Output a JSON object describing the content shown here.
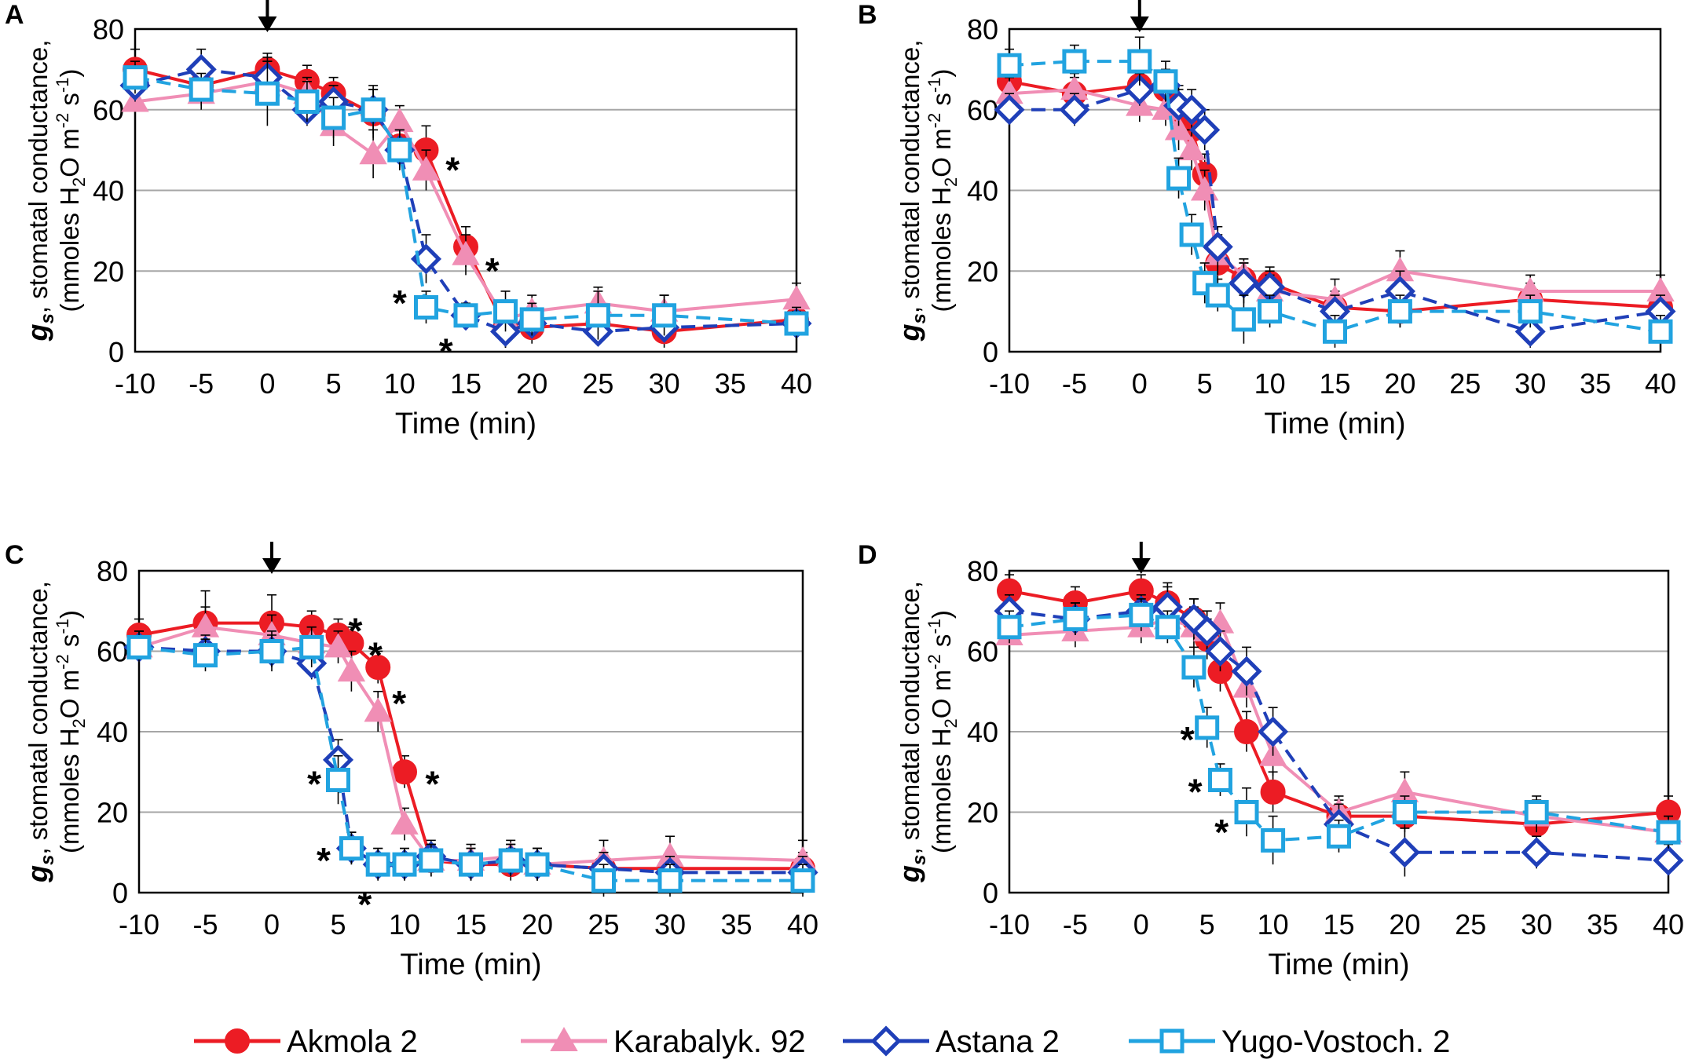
{
  "y_axis_label": {
    "symbol": "g",
    "subscript": "s",
    "line1": ", stomatal conductance,",
    "line2_prefix": "(mmoles H",
    "line2_sub": "2",
    "line2_mid": "O m",
    "line2_sup1": "-2",
    "line2_mid2": " s",
    "line2_sup2": "-1",
    "line2_suffix": ")"
  },
  "arrow_glyph": "↓",
  "star_glyph": "*",
  "legend": [
    {
      "name": "Akmola 2",
      "color": "#ec1c24",
      "marker": "circle",
      "dash": "solid"
    },
    {
      "name": "Karabalyk. 92",
      "color": "#f08eb5",
      "marker": "triangle",
      "dash": "solid"
    },
    {
      "name": "Astana 2",
      "color": "#1f3fb8",
      "marker": "diamond",
      "dash": "dashed"
    },
    {
      "name": "Yugo-Vostoch. 2",
      "color": "#21a3e0",
      "marker": "square",
      "dash": "dashed"
    }
  ],
  "chart_data": [
    {
      "type": "line",
      "panel": "A",
      "xlabel": "Time (min)",
      "xlim": [
        -10,
        40
      ],
      "xticks": [
        -10,
        -5,
        0,
        5,
        10,
        15,
        20,
        25,
        30,
        35,
        40
      ],
      "ylim": [
        0,
        80
      ],
      "yticks": [
        0,
        20,
        40,
        60,
        80
      ],
      "arrow_x": 0,
      "series": [
        {
          "name": "Akmola 2",
          "x": [
            -10,
            -5,
            0,
            3,
            5,
            8,
            10,
            12,
            15,
            18,
            20,
            25,
            30,
            40
          ],
          "y": [
            70,
            66,
            70,
            67,
            64,
            59,
            51,
            50,
            26,
            6,
            6,
            7,
            5,
            8
          ],
          "err": [
            5,
            4,
            4,
            4,
            4,
            6,
            4,
            6,
            5,
            5,
            4,
            4,
            4,
            4
          ]
        },
        {
          "name": "Karabalyk. 92",
          "x": [
            -10,
            -5,
            0,
            3,
            5,
            8,
            10,
            12,
            15,
            18,
            20,
            25,
            30,
            40
          ],
          "y": [
            62,
            64,
            67,
            64,
            56,
            49,
            57,
            45,
            24,
            8,
            10,
            12,
            10,
            13
          ],
          "err": [
            5,
            4,
            5,
            4,
            5,
            6,
            4,
            5,
            5,
            4,
            4,
            4,
            4,
            4
          ]
        },
        {
          "name": "Astana 2",
          "x": [
            -10,
            -5,
            0,
            3,
            5,
            8,
            10,
            12,
            15,
            18,
            20,
            25,
            30,
            40
          ],
          "y": [
            66,
            70,
            68,
            60,
            62,
            60,
            50,
            23,
            9,
            5,
            7,
            5,
            6,
            7
          ],
          "err": [
            4,
            5,
            5,
            4,
            4,
            5,
            5,
            6,
            3,
            4,
            3,
            3,
            3,
            3
          ]
        },
        {
          "name": "Yugo-Vostoch. 2",
          "x": [
            -10,
            -5,
            0,
            3,
            5,
            8,
            10,
            12,
            15,
            18,
            20,
            25,
            30,
            40
          ],
          "y": [
            68,
            65,
            64,
            62,
            58,
            60,
            50,
            11,
            9,
            10,
            8,
            9,
            9,
            7
          ],
          "err": [
            4,
            4,
            8,
            5,
            5,
            6,
            5,
            4,
            3,
            5,
            4,
            6,
            5,
            4
          ]
        }
      ],
      "annotations": [
        {
          "text": "*",
          "x": 14,
          "y": 47
        },
        {
          "text": "*",
          "x": 17,
          "y": 22
        },
        {
          "text": "*",
          "x": 10,
          "y": 14
        },
        {
          "text": "*",
          "x": 13.5,
          "y": 2
        }
      ]
    },
    {
      "type": "line",
      "panel": "B",
      "xlabel": "Time (min)",
      "xlim": [
        -10,
        40
      ],
      "xticks": [
        -10,
        -5,
        0,
        5,
        10,
        15,
        20,
        25,
        30,
        35,
        40
      ],
      "ylim": [
        0,
        80
      ],
      "yticks": [
        0,
        20,
        40,
        60,
        80
      ],
      "arrow_x": 0,
      "series": [
        {
          "name": "Akmola 2",
          "x": [
            -10,
            -5,
            0,
            2,
            3,
            4,
            5,
            6,
            8,
            10,
            15,
            20,
            30,
            40
          ],
          "y": [
            67,
            64,
            66,
            65,
            60,
            55,
            44,
            22,
            18,
            17,
            11,
            10,
            13,
            11
          ],
          "err": [
            4,
            4,
            4,
            4,
            5,
            5,
            5,
            5,
            4,
            4,
            4,
            4,
            4,
            4
          ]
        },
        {
          "name": "Karabalyk. 92",
          "x": [
            -10,
            -5,
            0,
            2,
            3,
            4,
            5,
            6,
            8,
            10,
            15,
            20,
            30,
            40
          ],
          "y": [
            64,
            65,
            61,
            60,
            55,
            50,
            40,
            24,
            19,
            15,
            13,
            20,
            15,
            15
          ],
          "err": [
            4,
            4,
            4,
            4,
            5,
            5,
            5,
            5,
            4,
            4,
            5,
            5,
            4,
            4
          ]
        },
        {
          "name": "Astana 2",
          "x": [
            -10,
            -5,
            0,
            2,
            3,
            4,
            5,
            6,
            8,
            10,
            15,
            20,
            30,
            40
          ],
          "y": [
            60,
            60,
            65,
            66,
            61,
            60,
            55,
            26,
            17,
            16,
            10,
            15,
            5,
            10
          ],
          "err": [
            4,
            4,
            4,
            4,
            5,
            5,
            5,
            5,
            5,
            4,
            4,
            5,
            4,
            4
          ]
        },
        {
          "name": "Yugo-Vostoch. 2",
          "x": [
            -10,
            -5,
            0,
            2,
            3,
            4,
            5,
            6,
            8,
            10,
            15,
            20,
            30,
            40
          ],
          "y": [
            71,
            72,
            72,
            67,
            43,
            29,
            17,
            14,
            8,
            10,
            5,
            10,
            10,
            5
          ],
          "err": [
            4,
            4,
            6,
            5,
            5,
            5,
            5,
            4,
            6,
            4,
            4,
            4,
            4,
            4
          ]
        }
      ],
      "annotations": []
    },
    {
      "type": "line",
      "panel": "C",
      "xlabel": "Time (min)",
      "xlim": [
        -10,
        40
      ],
      "xticks": [
        -10,
        -5,
        0,
        5,
        10,
        15,
        20,
        25,
        30,
        35,
        40
      ],
      "ylim": [
        0,
        80
      ],
      "yticks": [
        0,
        20,
        40,
        60,
        80
      ],
      "arrow_x": 0,
      "series": [
        {
          "name": "Akmola 2",
          "x": [
            -10,
            -5,
            0,
            3,
            5,
            6,
            8,
            10,
            12,
            15,
            18,
            20,
            25,
            30,
            40
          ],
          "y": [
            64,
            67,
            67,
            66,
            64,
            62,
            56,
            30,
            8,
            7,
            7,
            7,
            6,
            6,
            6
          ],
          "err": [
            4,
            8,
            7,
            4,
            4,
            4,
            4,
            4,
            4,
            4,
            4,
            4,
            4,
            4,
            4
          ]
        },
        {
          "name": "Karabalyk. 92",
          "x": [
            -10,
            -5,
            0,
            3,
            5,
            6,
            8,
            10,
            12,
            15,
            18,
            20,
            25,
            30,
            40
          ],
          "y": [
            61,
            66,
            64,
            62,
            61,
            55,
            45,
            17,
            8,
            8,
            9,
            7,
            8,
            9,
            8
          ],
          "err": [
            4,
            5,
            5,
            4,
            4,
            5,
            5,
            4,
            4,
            4,
            4,
            4,
            5,
            5,
            5
          ]
        },
        {
          "name": "Astana 2",
          "x": [
            -10,
            -5,
            0,
            3,
            5,
            6,
            8,
            10,
            12,
            15,
            18,
            20,
            25,
            30,
            40
          ],
          "y": [
            61,
            60,
            60,
            57,
            33,
            11,
            7,
            7,
            9,
            7,
            8,
            7,
            6,
            5,
            5
          ],
          "err": [
            4,
            4,
            5,
            4,
            5,
            4,
            4,
            4,
            4,
            4,
            4,
            4,
            4,
            4,
            4
          ]
        },
        {
          "name": "Yugo-Vostoch. 2",
          "x": [
            -10,
            -5,
            0,
            3,
            5,
            6,
            8,
            10,
            12,
            15,
            18,
            20,
            25,
            30,
            40
          ],
          "y": [
            61,
            59,
            60,
            61,
            28,
            11,
            7,
            7,
            8,
            7,
            8,
            7,
            3,
            3,
            3
          ],
          "err": [
            4,
            4,
            4,
            5,
            6,
            4,
            4,
            4,
            4,
            4,
            4,
            4,
            4,
            4,
            4
          ]
        }
      ],
      "annotations": [
        {
          "text": "*",
          "x": 6.3,
          "y": 67
        },
        {
          "text": "*",
          "x": 7.8,
          "y": 61
        },
        {
          "text": "*",
          "x": 9.6,
          "y": 49
        },
        {
          "text": "*",
          "x": 12.1,
          "y": 29
        },
        {
          "text": "*",
          "x": 3.2,
          "y": 29
        },
        {
          "text": "*",
          "x": 3.9,
          "y": 10
        },
        {
          "text": "*",
          "x": 7.0,
          "y": -1
        }
      ]
    },
    {
      "type": "line",
      "panel": "D",
      "xlabel": "Time (min)",
      "xlim": [
        -10,
        40
      ],
      "xticks": [
        -10,
        -5,
        0,
        5,
        10,
        15,
        20,
        25,
        30,
        35,
        40
      ],
      "ylim": [
        0,
        80
      ],
      "yticks": [
        0,
        20,
        40,
        60,
        80
      ],
      "arrow_x": 0,
      "series": [
        {
          "name": "Akmola 2",
          "x": [
            -10,
            -5,
            0,
            2,
            4,
            5,
            6,
            8,
            10,
            15,
            20,
            30,
            40
          ],
          "y": [
            75,
            72,
            75,
            72,
            68,
            63,
            55,
            40,
            25,
            19,
            19,
            17,
            20
          ],
          "err": [
            4,
            4,
            4,
            5,
            5,
            5,
            5,
            5,
            5,
            4,
            4,
            4,
            4
          ]
        },
        {
          "name": "Karabalyk. 92",
          "x": [
            -10,
            -5,
            0,
            2,
            4,
            5,
            6,
            8,
            10,
            15,
            20,
            30,
            40
          ],
          "y": [
            64,
            65,
            66,
            68,
            66,
            65,
            67,
            51,
            34,
            20,
            25,
            19,
            15
          ],
          "err": [
            4,
            4,
            4,
            4,
            5,
            5,
            5,
            5,
            5,
            4,
            5,
            4,
            4
          ]
        },
        {
          "name": "Astana 2",
          "x": [
            -10,
            -5,
            0,
            2,
            4,
            5,
            6,
            8,
            10,
            15,
            20,
            30,
            40
          ],
          "y": [
            70,
            68,
            70,
            71,
            68,
            65,
            60,
            55,
            40,
            17,
            10,
            10,
            8
          ],
          "err": [
            4,
            4,
            4,
            5,
            5,
            5,
            5,
            6,
            6,
            5,
            6,
            4,
            4
          ]
        },
        {
          "name": "Yugo-Vostoch. 2",
          "x": [
            -10,
            -5,
            0,
            2,
            4,
            5,
            6,
            8,
            10,
            15,
            20,
            30,
            40
          ],
          "y": [
            66,
            68,
            69,
            66,
            56,
            41,
            28,
            20,
            13,
            14,
            20,
            20,
            15
          ],
          "err": [
            4,
            4,
            4,
            4,
            5,
            5,
            4,
            6,
            6,
            4,
            4,
            4,
            4
          ]
        }
      ],
      "annotations": [
        {
          "text": "*",
          "x": 3.5,
          "y": 40
        },
        {
          "text": "*",
          "x": 4.1,
          "y": 27
        },
        {
          "text": "*",
          "x": 6.1,
          "y": 17
        }
      ]
    }
  ]
}
